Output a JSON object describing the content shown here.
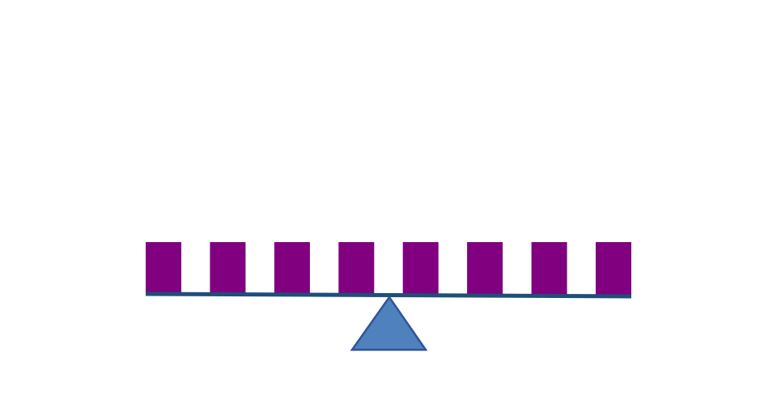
{
  "diagram": {
    "block_count": 8,
    "colors": {
      "block": "#800080",
      "beam": "#1F4E79",
      "fulcrum_fill": "#4F81BD",
      "fulcrum_stroke": "#2F5597",
      "background": "#FFFFFF"
    },
    "shapes": {
      "blocks": "rectangle",
      "beam": "line",
      "fulcrum": "triangle"
    }
  }
}
